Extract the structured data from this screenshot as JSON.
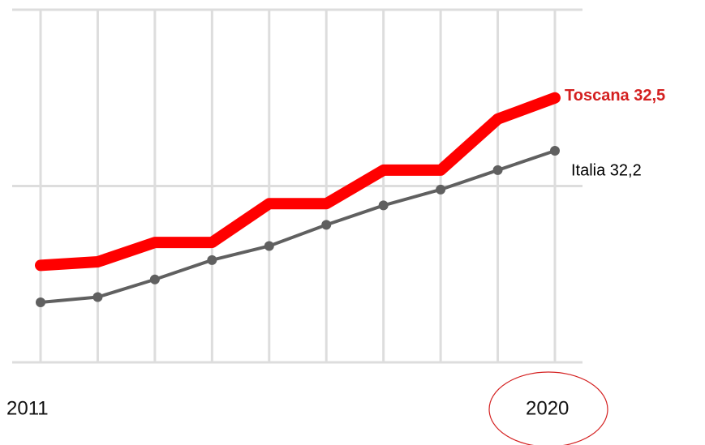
{
  "chart_data": {
    "type": "line",
    "categories": [
      "2011",
      null,
      null,
      null,
      null,
      null,
      null,
      null,
      null,
      "2020"
    ],
    "series": [
      {
        "name": "Toscana",
        "label": "Toscana 32,5",
        "color": "#ff0000",
        "label_color": "#d42020",
        "values": [
          31.55,
          31.57,
          31.68,
          31.68,
          31.9,
          31.9,
          32.09,
          32.09,
          32.38,
          32.5
        ]
      },
      {
        "name": "Italia",
        "label": "Italia 32,2",
        "color": "#606060",
        "label_color": "#000000",
        "values": [
          31.34,
          31.37,
          31.47,
          31.58,
          31.66,
          31.78,
          31.89,
          31.98,
          32.09,
          32.2
        ]
      }
    ],
    "ylim": [
      31,
      33
    ],
    "yticks": [
      31,
      32,
      33
    ],
    "grid": true
  }
}
